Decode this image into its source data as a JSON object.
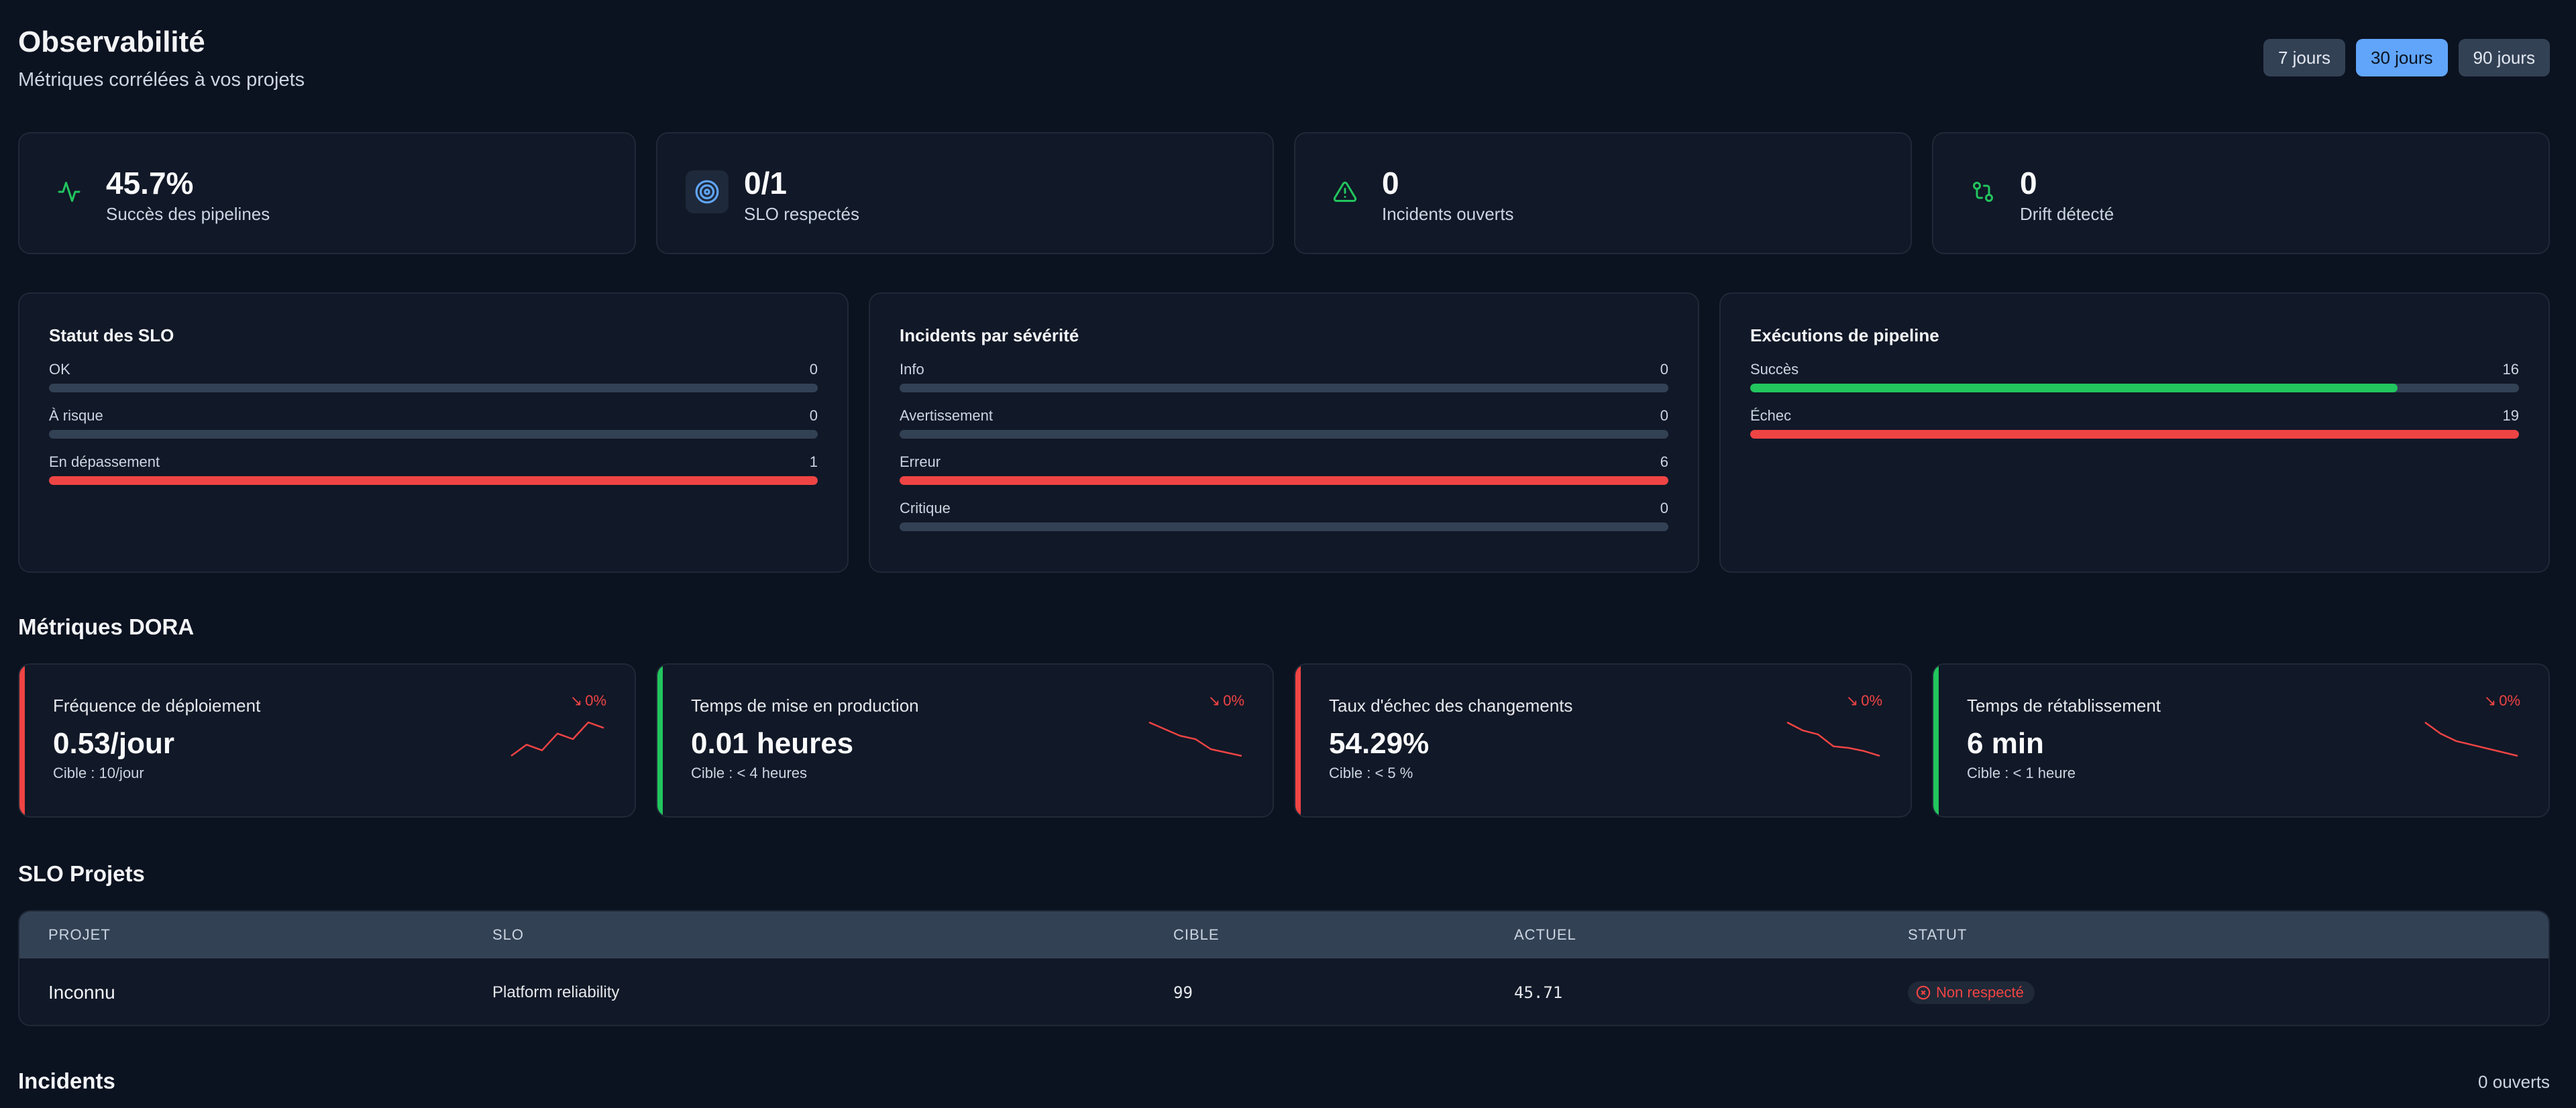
{
  "header": {
    "title": "Observabilité",
    "subtitle": "Métriques corrélées à vos projets",
    "ranges": [
      {
        "label": "7 jours",
        "active": false
      },
      {
        "label": "30 jours",
        "active": true
      },
      {
        "label": "90 jours",
        "active": false
      }
    ]
  },
  "stats": [
    {
      "icon": "activity-icon",
      "value": "45.7%",
      "label": "Succès des pipelines",
      "color": "#22c55e"
    },
    {
      "icon": "target-icon",
      "value": "0/1",
      "label": "SLO respectés",
      "color": "#60a5fa"
    },
    {
      "icon": "alert-triangle-icon",
      "value": "0",
      "label": "Incidents ouverts",
      "color": "#22c55e"
    },
    {
      "icon": "git-compare-icon",
      "value": "0",
      "label": "Drift détecté",
      "color": "#22c55e"
    }
  ],
  "panels": {
    "slo_status": {
      "title": "Statut des SLO",
      "rows": [
        {
          "label": "OK",
          "value": "0",
          "fraction": 0,
          "color": "#22c55e"
        },
        {
          "label": "À risque",
          "value": "0",
          "fraction": 0,
          "color": "#eab308"
        },
        {
          "label": "En dépassement",
          "value": "1",
          "fraction": 1,
          "color": "#ef4444"
        }
      ]
    },
    "incidents": {
      "title": "Incidents par sévérité",
      "rows": [
        {
          "label": "Info",
          "value": "0",
          "fraction": 0,
          "color": "#60a5fa"
        },
        {
          "label": "Avertissement",
          "value": "0",
          "fraction": 0,
          "color": "#eab308"
        },
        {
          "label": "Erreur",
          "value": "6",
          "fraction": 1,
          "color": "#ef4444"
        },
        {
          "label": "Critique",
          "value": "0",
          "fraction": 0,
          "color": "#b91c1c"
        }
      ]
    },
    "pipelines": {
      "title": "Exécutions de pipeline",
      "rows": [
        {
          "label": "Succès",
          "value": "16",
          "fraction": 0.842,
          "color": "#22c55e"
        },
        {
          "label": "Échec",
          "value": "19",
          "fraction": 1,
          "color": "#ef4444"
        }
      ]
    }
  },
  "dora": {
    "title": "Métriques DORA",
    "cards": [
      {
        "title": "Fréquence de déploiement",
        "value": "0.53/jour",
        "target": "Cible : 10/jour",
        "trend": "0%",
        "accent": "#ef4444",
        "spark": [
          2,
          4,
          3,
          6,
          5,
          8,
          7
        ]
      },
      {
        "title": "Temps de mise en production",
        "value": "0.01 heures",
        "target": "Cible : < 4 heures",
        "trend": "0%",
        "accent": "#22c55e",
        "spark": [
          8,
          7,
          6,
          5.5,
          4,
          3.5,
          3
        ]
      },
      {
        "title": "Taux d'échec des changements",
        "value": "54.29%",
        "target": "Cible : < 5 %",
        "trend": "0%",
        "accent": "#ef4444",
        "spark": [
          8,
          7,
          6.5,
          5,
          4.8,
          4.4,
          3.8
        ]
      },
      {
        "title": "Temps de rétablissement",
        "value": "6 min",
        "target": "Cible : < 1 heure",
        "trend": "0%",
        "accent": "#22c55e",
        "spark": [
          8,
          6.5,
          5.5,
          5,
          4.5,
          4,
          3.5
        ]
      }
    ]
  },
  "slo_projects": {
    "title": "SLO Projets",
    "columns": [
      "PROJET",
      "SLO",
      "CIBLE",
      "ACTUEL",
      "STATUT"
    ],
    "rows": [
      {
        "project": "Inconnu",
        "slo": "Platform reliability",
        "target": "99",
        "current": "45.71",
        "status": "Non respecté"
      }
    ]
  },
  "incidents_section": {
    "title": "Incidents",
    "count_label": "0 ouverts"
  }
}
